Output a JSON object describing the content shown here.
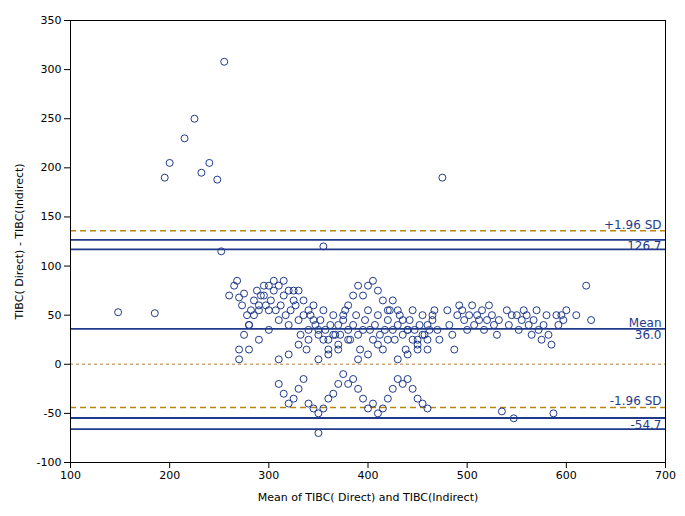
{
  "chart_data": {
    "type": "scatter",
    "xlabel": "Mean of TIBC( Direct) and TIBC(Indirect)",
    "ylabel": "TIBC( Direct) - TIBC(Indirect)",
    "xlim": [
      100,
      700
    ],
    "ylim": [
      -100,
      350
    ],
    "xticks": [
      100,
      200,
      300,
      400,
      500,
      600,
      700
    ],
    "yticks": [
      -100,
      -50,
      0,
      50,
      100,
      150,
      200,
      250,
      300,
      350
    ],
    "grid": false,
    "color": "#1F3A8A",
    "marker": "open circle",
    "x": [
      148,
      185,
      195,
      200,
      215,
      225,
      232,
      240,
      248,
      252,
      255,
      260,
      265,
      268,
      270,
      273,
      275,
      278,
      280,
      282,
      285,
      288,
      290,
      292,
      295,
      297,
      300,
      302,
      305,
      307,
      310,
      312,
      315,
      317,
      320,
      322,
      325,
      327,
      330,
      332,
      335,
      338,
      340,
      342,
      345,
      347,
      350,
      352,
      355,
      357,
      360,
      362,
      365,
      367,
      370,
      372,
      375,
      377,
      380,
      382,
      385,
      388,
      390,
      392,
      395,
      397,
      400,
      402,
      405,
      407,
      410,
      412,
      415,
      417,
      420,
      422,
      425,
      427,
      430,
      432,
      435,
      438,
      440,
      442,
      445,
      447,
      450,
      452,
      455,
      457,
      460,
      462,
      465,
      467,
      470,
      472,
      475,
      480,
      482,
      485,
      487,
      490,
      492,
      495,
      497,
      500,
      502,
      505,
      507,
      510,
      512,
      515,
      517,
      520,
      522,
      525,
      527,
      530,
      532,
      540,
      542,
      545,
      550,
      552,
      555,
      557,
      560,
      562,
      565,
      567,
      570,
      572,
      575,
      577,
      580,
      582,
      585,
      590,
      592,
      595,
      597,
      600,
      610,
      620,
      625,
      270,
      275,
      280,
      285,
      290,
      295,
      300,
      305,
      310,
      315,
      320,
      325,
      330,
      335,
      340,
      345,
      350,
      355,
      360,
      365,
      370,
      375,
      380,
      385,
      390,
      395,
      400,
      405,
      410,
      415,
      420,
      425,
      430,
      435,
      440,
      445,
      450,
      455,
      460,
      465,
      310,
      315,
      320,
      325,
      330,
      335,
      340,
      345,
      350,
      355,
      360,
      365,
      370,
      375,
      380,
      385,
      390,
      395,
      400,
      405,
      410,
      415,
      420,
      425,
      430,
      435,
      440,
      445,
      450,
      455,
      460,
      535,
      547,
      587,
      350,
      355,
      270,
      280,
      290,
      300,
      310,
      320,
      330,
      340,
      350,
      360,
      370,
      380,
      390,
      400,
      410,
      420,
      430,
      440,
      450,
      460
    ],
    "values": [
      53,
      52,
      190,
      205,
      230,
      250,
      195,
      205,
      188,
      115,
      308,
      70,
      80,
      85,
      68,
      60,
      72,
      50,
      40,
      55,
      65,
      75,
      55,
      70,
      80,
      60,
      55,
      65,
      75,
      55,
      45,
      60,
      70,
      50,
      40,
      55,
      75,
      60,
      45,
      30,
      50,
      15,
      35,
      50,
      60,
      40,
      30,
      45,
      55,
      35,
      25,
      40,
      50,
      30,
      15,
      30,
      45,
      55,
      35,
      25,
      40,
      50,
      30,
      15,
      35,
      45,
      55,
      35,
      25,
      40,
      50,
      30,
      15,
      35,
      45,
      55,
      35,
      25,
      40,
      50,
      30,
      15,
      35,
      45,
      55,
      35,
      25,
      40,
      50,
      30,
      15,
      35,
      45,
      55,
      35,
      25,
      190,
      55,
      40,
      30,
      15,
      50,
      60,
      55,
      45,
      35,
      50,
      60,
      40,
      50,
      45,
      55,
      35,
      45,
      60,
      50,
      40,
      30,
      45,
      55,
      40,
      50,
      50,
      35,
      45,
      55,
      50,
      40,
      30,
      45,
      55,
      35,
      25,
      40,
      50,
      30,
      20,
      50,
      40,
      50,
      45,
      55,
      50,
      80,
      45,
      15,
      30,
      40,
      50,
      60,
      70,
      80,
      85,
      80,
      85,
      75,
      65,
      75,
      65,
      55,
      45,
      35,
      25,
      15,
      30,
      40,
      50,
      60,
      70,
      80,
      70,
      80,
      85,
      75,
      65,
      55,
      65,
      55,
      45,
      35,
      25,
      15,
      30,
      40,
      50,
      -20,
      -30,
      -40,
      -35,
      -25,
      -15,
      -40,
      -45,
      -50,
      -45,
      -35,
      -30,
      -20,
      -10,
      -20,
      -15,
      -25,
      -35,
      -45,
      -40,
      -50,
      -45,
      -35,
      -25,
      -15,
      -20,
      -15,
      -25,
      -35,
      -40,
      -45,
      -48,
      -55,
      -50,
      -70,
      120,
      5,
      15,
      25,
      35,
      5,
      10,
      20,
      25,
      5,
      10,
      20,
      25,
      5,
      10,
      20,
      25,
      5,
      10,
      20,
      25
    ],
    "lines": [
      {
        "y": 0.0,
        "color": "#D2A679",
        "line_style": "dotted"
      },
      {
        "y": 36.0,
        "color": "#1F3A8A",
        "line_style": "solid"
      },
      {
        "y": 126.7,
        "color": "#1F3A8A",
        "line_style": "solid"
      },
      {
        "y": 136.0,
        "color": "#B8860B",
        "line_style": "dashed"
      },
      {
        "y": 117.0,
        "color": "#1F3A8A",
        "line_style": "solid"
      },
      {
        "y": -54.7,
        "color": "#1F3A8A",
        "line_style": "solid"
      },
      {
        "y": -44.0,
        "color": "#B8860B",
        "line_style": "dashed"
      },
      {
        "y": -66.0,
        "color": "#1F3A8A",
        "line_style": "solid"
      }
    ],
    "annotations": [
      {
        "text": "+1.96 SD",
        "y": 136.0,
        "position": "above",
        "color": "#1F3A8A"
      },
      {
        "text": "126.7",
        "y": 126.7,
        "position": "below",
        "color": "#1F3A8A"
      },
      {
        "text": "Mean",
        "y": 36.0,
        "position": "above",
        "color": "#1F3A8A"
      },
      {
        "text": "36.0",
        "y": 36.0,
        "position": "below",
        "color": "#1F3A8A"
      },
      {
        "text": "-1.96 SD",
        "y": -44.0,
        "position": "above",
        "color": "#1F3A8A"
      },
      {
        "text": "-54.7",
        "y": -54.7,
        "position": "below",
        "color": "#1F3A8A"
      }
    ]
  }
}
